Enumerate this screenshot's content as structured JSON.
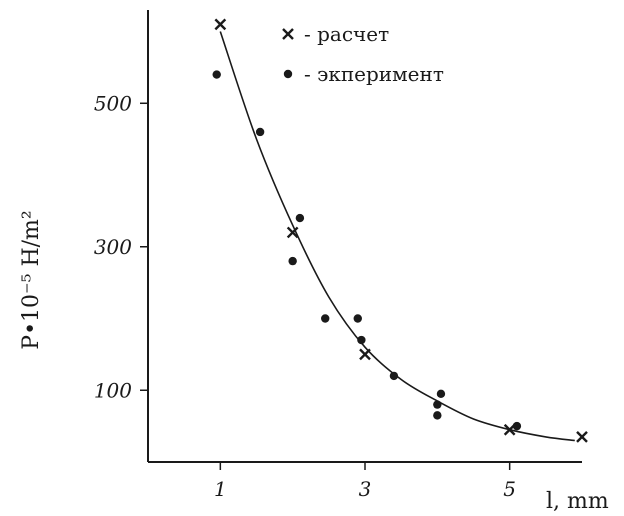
{
  "chart_data": {
    "type": "scatter",
    "title": "",
    "xlabel": "l, mm",
    "ylabel": "P•10⁻⁵ H/m²",
    "xlim": [
      0,
      6
    ],
    "ylim": [
      0,
      630
    ],
    "x_ticks": [
      {
        "value": 1,
        "label": "1"
      },
      {
        "value": 3,
        "label": "3"
      },
      {
        "value": 5,
        "label": "5"
      }
    ],
    "y_ticks": [
      {
        "value": 100,
        "label": "100"
      },
      {
        "value": 300,
        "label": "300"
      },
      {
        "value": 500,
        "label": "500"
      }
    ],
    "grid": false,
    "legend_position": "top-right",
    "legend": [
      {
        "marker": "cross",
        "label": "- расчет"
      },
      {
        "marker": "dot",
        "label": "- экперимент"
      }
    ],
    "series": [
      {
        "marker": "cross",
        "x": [
          1.0,
          2.0,
          3.0,
          5.0,
          6.0
        ],
        "y": [
          610,
          320,
          150,
          45,
          35
        ]
      },
      {
        "marker": "dot",
        "x": [
          0.95,
          1.55,
          2.0,
          2.1,
          2.45,
          2.9,
          2.95,
          3.4,
          4.0,
          4.0,
          4.05,
          5.1
        ],
        "y": [
          540,
          460,
          280,
          340,
          200,
          200,
          170,
          120,
          80,
          65,
          95,
          50
        ]
      }
    ],
    "fit_curve": {
      "x": [
        1.0,
        1.5,
        2.0,
        2.5,
        3.0,
        3.5,
        4.0,
        4.5,
        5.0,
        5.5,
        5.9
      ],
      "y": [
        600,
        450,
        330,
        230,
        160,
        115,
        85,
        60,
        45,
        35,
        30
      ]
    }
  }
}
